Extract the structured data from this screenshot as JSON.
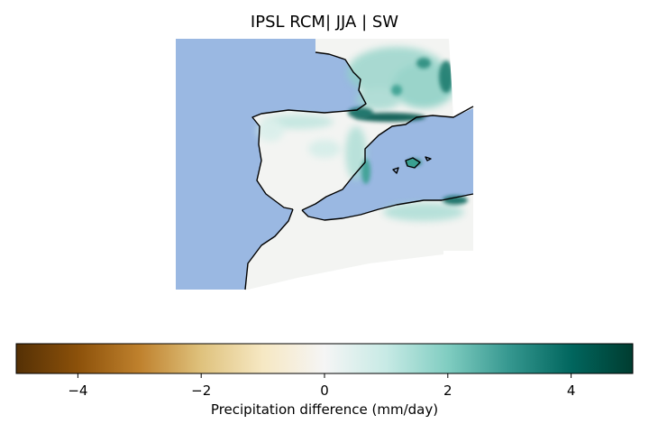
{
  "title": "IPSL RCM| JJA | SW",
  "colorbar": {
    "label": "Precipitation difference (mm/day)",
    "min": -5,
    "max": 5,
    "ticks": [
      -4,
      -2,
      0,
      2,
      4
    ],
    "tick_labels": [
      "−4",
      "−2",
      "0",
      "2",
      "4"
    ],
    "colormap": "BrBG",
    "stops": [
      "#543005",
      "#8c510a",
      "#bf812d",
      "#dfc27d",
      "#f6e8c3",
      "#f5f5f5",
      "#c7eae5",
      "#80cdc1",
      "#35978f",
      "#01665e",
      "#003c30"
    ]
  },
  "map": {
    "region": "Iberian Peninsula, southern France, northwest Africa",
    "ocean_color": "#9ab8e2",
    "land_color": "#f3f4f2",
    "coastline_color": "#000000",
    "positive_color": "#2a8c7e",
    "strong_positive_color": "#03554b"
  }
}
